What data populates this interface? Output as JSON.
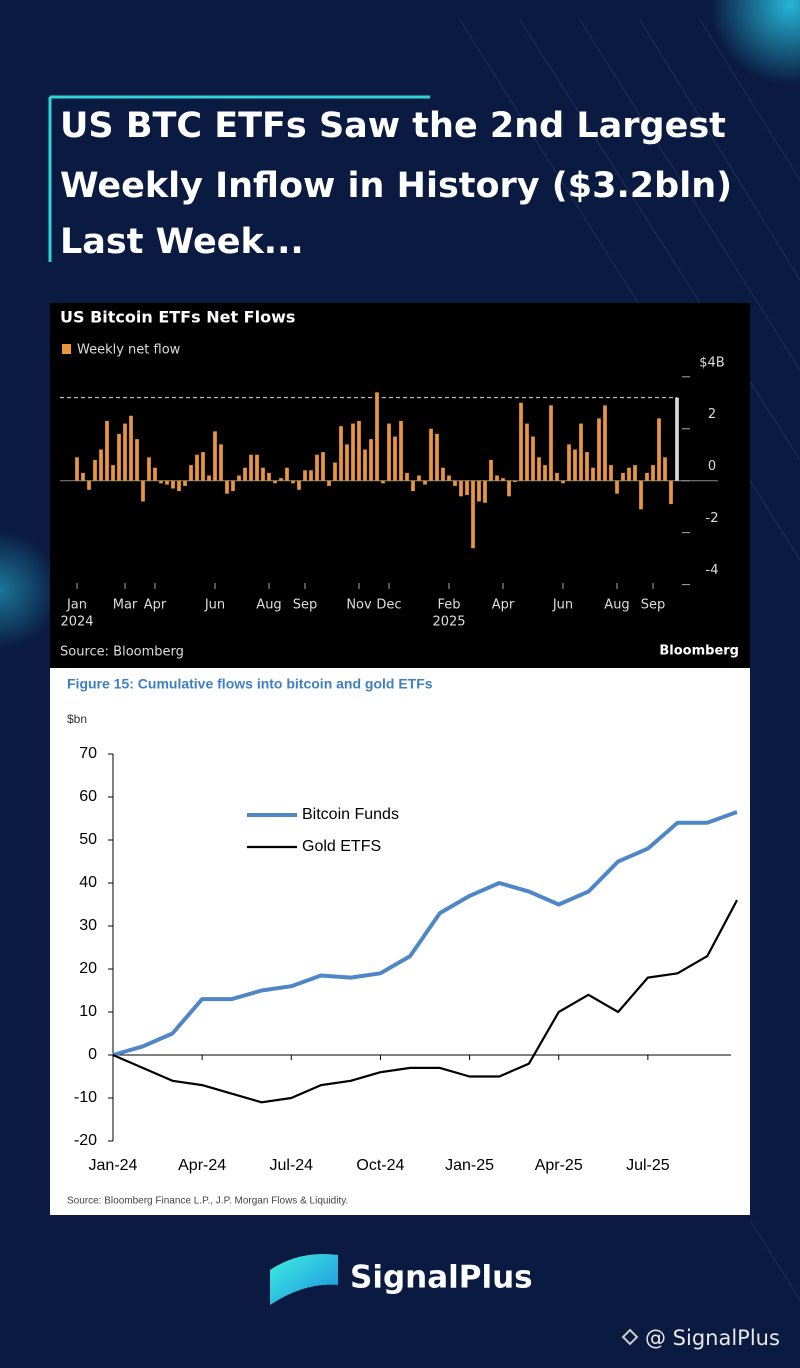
{
  "header": {
    "title_lines": [
      "US BTC ETFs Saw the 2nd Largest",
      "Weekly Inflow in History ($3.2bln)",
      "Last Week..."
    ]
  },
  "chart_data": [
    {
      "type": "bar",
      "title": "US Bitcoin ETFs Net Flows",
      "legend_label": "Weekly net flow",
      "color": "#e8973a",
      "highlight": {
        "index": 100,
        "color": "#d6d6d6"
      },
      "reference_line": 3.2,
      "categories": [
        "Jan",
        null,
        null,
        null,
        null,
        null,
        null,
        null,
        "Mar",
        null,
        null,
        null,
        null,
        "Apr",
        null,
        null,
        null,
        null,
        null,
        null,
        null,
        null,
        null,
        "Jun",
        null,
        null,
        null,
        null,
        null,
        null,
        null,
        null,
        "Aug",
        null,
        null,
        null,
        null,
        null,
        "Sep",
        null,
        null,
        null,
        null,
        null,
        null,
        null,
        null,
        "Nov",
        null,
        null,
        null,
        null,
        "Dec",
        null,
        null,
        null,
        null,
        null,
        null,
        null,
        null,
        null,
        "Feb",
        null,
        null,
        null,
        null,
        null,
        null,
        null,
        null,
        "Apr",
        null,
        null,
        null,
        null,
        null,
        null,
        null,
        null,
        null,
        "Jun",
        null,
        null,
        null,
        null,
        null,
        null,
        null,
        null,
        "Aug",
        null,
        null,
        null,
        null,
        null,
        "Sep",
        null,
        null,
        null,
        null
      ],
      "category_years": [
        "2024",
        null,
        null,
        null,
        null,
        null,
        null,
        null,
        null,
        null,
        null,
        null,
        null,
        null,
        null,
        null,
        null,
        null,
        null,
        null,
        null,
        null,
        null,
        null,
        null,
        null,
        null,
        null,
        null,
        null,
        null,
        null,
        null,
        null,
        null,
        null,
        null,
        null,
        null,
        null,
        null,
        null,
        null,
        null,
        null,
        null,
        null,
        null,
        null,
        null,
        null,
        null,
        null,
        null,
        null,
        null,
        null,
        null,
        null,
        null,
        null,
        null,
        "2025",
        null,
        null,
        null,
        null,
        null,
        null,
        null,
        null,
        null,
        null,
        null,
        null,
        null,
        null,
        null,
        null,
        null,
        null,
        null,
        null,
        null,
        null,
        null,
        null,
        null,
        null,
        null,
        null,
        null,
        null,
        null,
        null,
        null,
        null,
        null,
        null,
        null,
        null
      ],
      "values": [
        0.9,
        0.3,
        -0.35,
        0.8,
        1.2,
        2.3,
        0.6,
        1.8,
        2.2,
        2.5,
        1.6,
        -0.8,
        0.9,
        0.5,
        -0.1,
        -0.15,
        -0.3,
        -0.4,
        -0.2,
        0.6,
        1.0,
        1.1,
        0.2,
        1.9,
        1.4,
        -0.5,
        -0.4,
        0.2,
        0.5,
        1.0,
        1.0,
        0.5,
        0.3,
        -0.1,
        0.1,
        0.5,
        -0.1,
        -0.35,
        0.4,
        0.4,
        1.0,
        1.1,
        -0.2,
        0.7,
        2.1,
        1.4,
        2.2,
        2.3,
        1.2,
        1.6,
        3.4,
        -0.1,
        2.2,
        1.7,
        2.3,
        0.3,
        -0.4,
        0.2,
        -0.15,
        2.0,
        1.8,
        0.5,
        0.2,
        -0.2,
        -0.6,
        -0.55,
        -2.6,
        -0.8,
        -0.85,
        0.8,
        0.2,
        0.1,
        -0.6,
        -0.05,
        3.0,
        2.2,
        1.7,
        0.9,
        0.6,
        2.9,
        0.3,
        -0.1,
        1.4,
        1.2,
        2.2,
        1.1,
        0.5,
        2.4,
        2.9,
        0.6,
        -0.5,
        0.3,
        0.5,
        0.6,
        -1.1,
        0.3,
        0.6,
        2.4,
        0.9,
        -0.9,
        3.2
      ],
      "ylim": [
        -4.4,
        4.3
      ],
      "yticks": [
        {
          "value": 4,
          "label": "$4B"
        },
        2,
        0,
        -2,
        -4
      ],
      "source": "Source: Bloomberg",
      "brand": "Bloomberg"
    },
    {
      "type": "line",
      "title": "Figure 15: Cumulative flows into bitcoin and gold ETFs",
      "y_label": "$bn",
      "x": [
        "2024-01",
        "2024-02",
        "2024-03",
        "2024-04",
        "2024-05",
        "2024-06",
        "2024-07",
        "2024-08",
        "2024-09",
        "2024-10",
        "2024-11",
        "2024-12",
        "2025-01",
        "2025-02",
        "2025-03",
        "2025-04",
        "2025-05",
        "2025-06",
        "2025-07",
        "2025-08",
        "2025-09",
        "2025-10"
      ],
      "series": [
        {
          "name": "Bitcoin Funds",
          "color": "#4f86c6",
          "values": [
            0,
            2,
            5,
            13,
            13,
            15,
            16,
            18.5,
            18,
            19,
            23,
            33,
            37,
            40,
            38,
            35,
            38,
            45,
            48,
            54,
            54,
            56.5
          ]
        },
        {
          "name": "Gold ETFS",
          "color": "#000000",
          "values": [
            0,
            -3,
            -6,
            -7,
            -9,
            -11,
            -10,
            -7,
            -6,
            -4,
            -3,
            -3,
            -5,
            -5,
            -2,
            10,
            14,
            10,
            18,
            19,
            23,
            36
          ]
        }
      ],
      "xlim": [
        "2024-01",
        "2025-10"
      ],
      "xticks": [
        {
          "value": "2024-01",
          "label": "Jan-24"
        },
        {
          "value": "2024-04",
          "label": "Apr-24"
        },
        {
          "value": "2024-07",
          "label": "Jul-24"
        },
        {
          "value": "2024-10",
          "label": "Oct-24"
        },
        {
          "value": "2025-01",
          "label": "Jan-25"
        },
        {
          "value": "2025-04",
          "label": "Apr-25"
        },
        {
          "value": "2025-07",
          "label": "Jul-25"
        }
      ],
      "ylim": [
        -20,
        70
      ],
      "yticks": [
        -20,
        -10,
        0,
        10,
        20,
        30,
        40,
        50,
        60,
        70
      ],
      "source": "Source: Bloomberg Finance L.P., J.P. Morgan Flows & Liquidity."
    }
  ],
  "footer": {
    "brand": "SignalPlus",
    "handle": "@ SignalPlus"
  }
}
